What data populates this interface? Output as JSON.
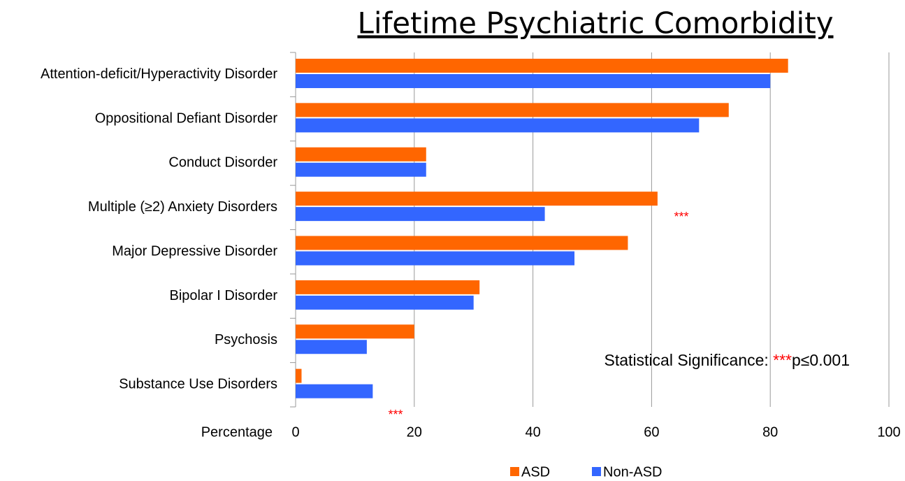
{
  "chart_data": {
    "type": "barh",
    "title": "Lifetime Psychiatric Comorbidity",
    "xlabel": "Percentage",
    "categories": [
      "Attention-deficit/Hyperactivity Disorder",
      "Oppositional Defiant Disorder",
      "Conduct Disorder",
      "Multiple (≥2) Anxiety Disorders",
      "Major Depressive Disorder",
      "Bipolar I Disorder",
      "Psychosis",
      "Substance Use Disorders"
    ],
    "series": [
      {
        "name": "ASD",
        "color": "#ff6600",
        "values": [
          83,
          73,
          22,
          61,
          56,
          31,
          20,
          1
        ]
      },
      {
        "name": "Non-ASD",
        "color": "#3366ff",
        "values": [
          80,
          68,
          22,
          42,
          47,
          30,
          12,
          13
        ]
      }
    ],
    "xlim": [
      0,
      100
    ],
    "xticks": [
      0,
      20,
      40,
      60,
      80,
      100
    ],
    "grid": true,
    "annotations": [
      "***",
      "***"
    ],
    "significance_note": [
      "Statistical Significance: ",
      "***",
      "p≤0.001"
    ],
    "legend": "bottom"
  }
}
